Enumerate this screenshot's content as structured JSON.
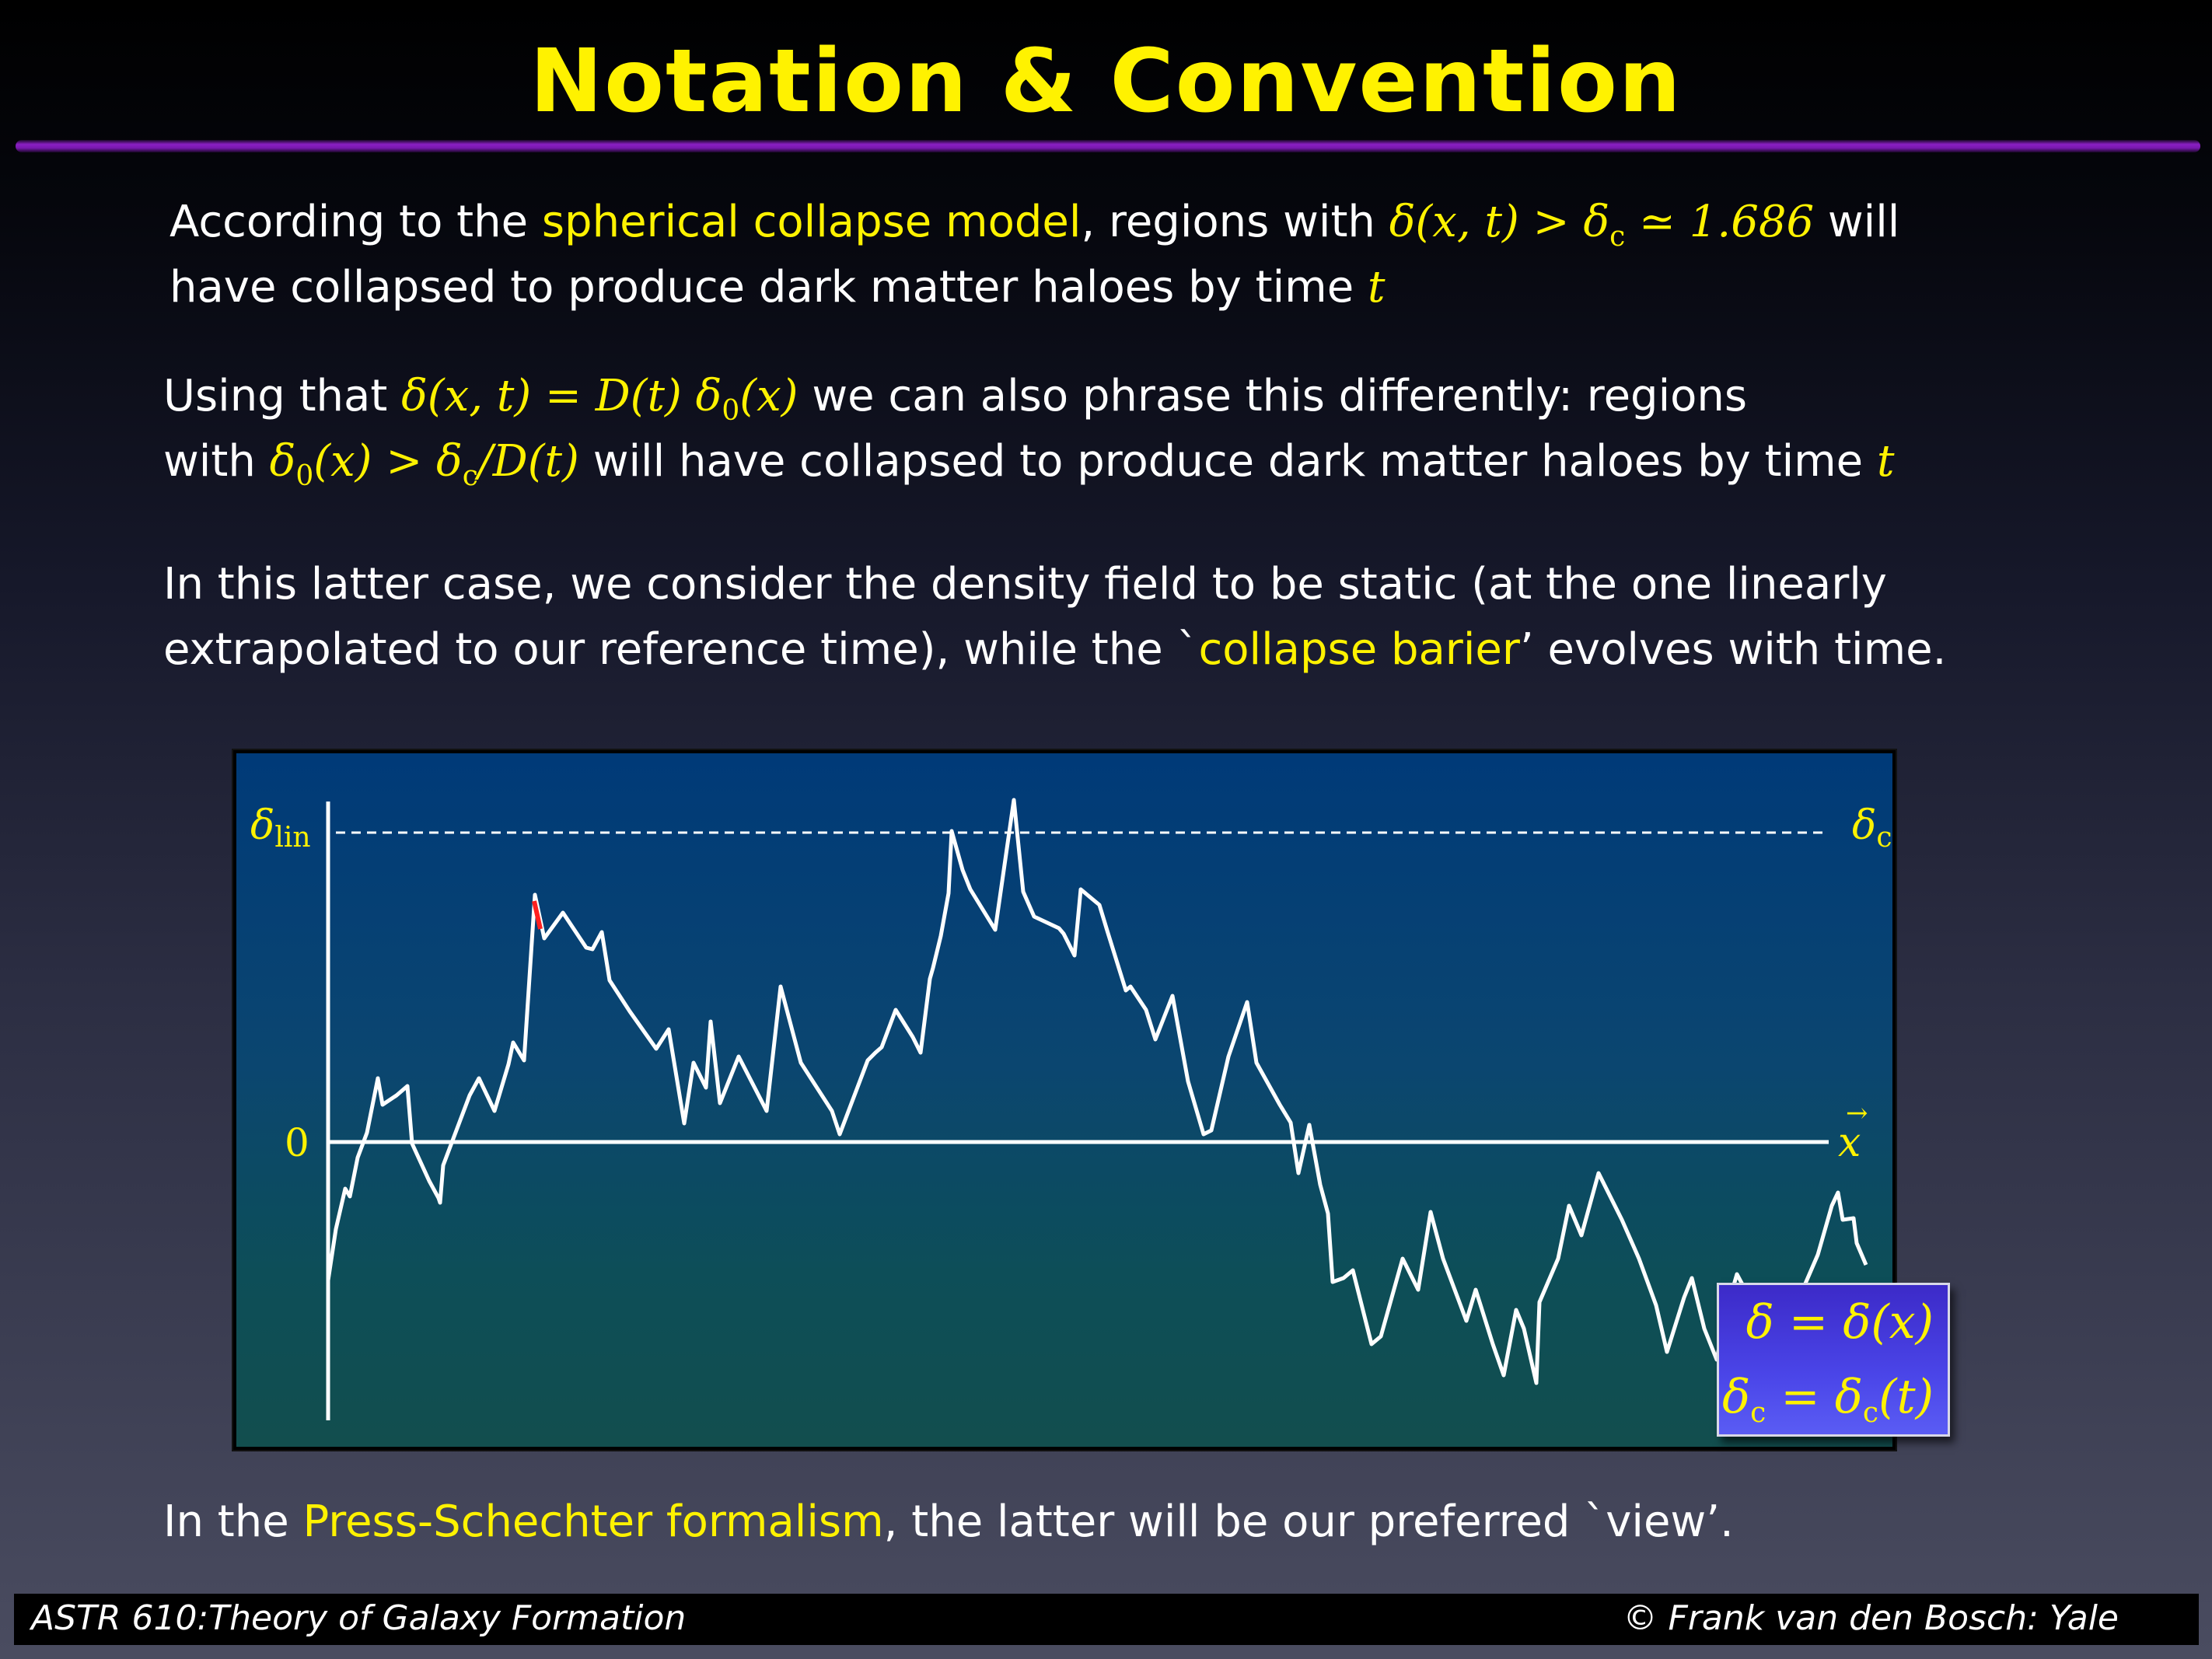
{
  "title": "Notation & Convention",
  "p1": {
    "t1": "According to the ",
    "h1": "spherical collapse model",
    "t2": ", regions with ",
    "m1": "δ(x, t) > δ",
    "m1sub": "c",
    "m1b": " ≃ 1.686",
    "t3": " will",
    "line2": "have collapsed to produce dark matter haloes by time ",
    "m2": "t"
  },
  "p2": {
    "t1": "Using that ",
    "m1": "δ(x, t) = D(t) δ",
    "m1sub": "0",
    "m1b": "(x)",
    "t2": " we can also phrase this differently: regions",
    "t3": "with ",
    "m2": "δ",
    "m2sub": "0",
    "m2b": "(x) > δ",
    "m2sub2": "c",
    "m2c": "/D(t)",
    "t4": " will have collapsed to produce dark matter haloes by time ",
    "m3": "t"
  },
  "p3": {
    "line1": "In this latter case, we consider the density field to be static (at the one linearly",
    "t1": "extrapolated to our reference time), while the `",
    "h1": "collapse barier",
    "t2": "’ evolves with time."
  },
  "figure": {
    "y_label": "δ",
    "y_label_sub": "lin",
    "zero_label": "0",
    "barrier_label": "δ",
    "barrier_label_sub": "c",
    "x_label": "x",
    "legend_line1": "δ = δ(x)",
    "legend_line2a": "δ",
    "legend_line2sub": "c",
    "legend_line2b": " = δ",
    "legend_line2sub2": "c",
    "legend_line2c": "(t)"
  },
  "p4": {
    "t1": "In the ",
    "h1": "Press-Schechter formalism",
    "t2": ", the latter will be our preferred `view’."
  },
  "footer": {
    "left": "ASTR 610:Theory of Galaxy Formation",
    "right": "© Frank van den Bosch: Yale"
  },
  "colors": {
    "highlight": "#fff200",
    "title_rule": "#8a1fc2",
    "figure_bg_top": "#003a78",
    "legend_bg": "#4a45e8"
  }
}
